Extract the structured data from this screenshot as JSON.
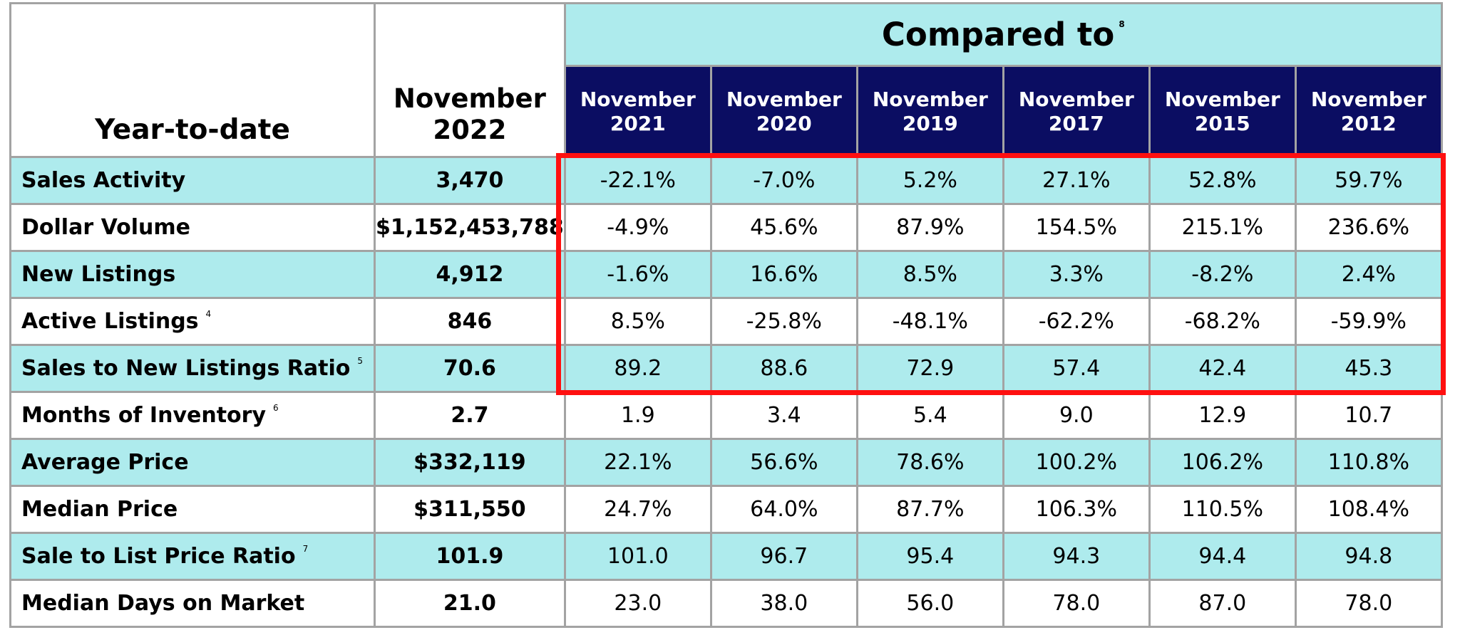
{
  "table": {
    "corner_label": "Year-to-date",
    "current_period": [
      "November",
      "2022"
    ],
    "compared_label": "Compared to",
    "compared_note": "8",
    "comparison_periods": [
      [
        "November",
        "2021"
      ],
      [
        "November",
        "2020"
      ],
      [
        "November",
        "2019"
      ],
      [
        "November",
        "2017"
      ],
      [
        "November",
        "2015"
      ],
      [
        "November",
        "2012"
      ]
    ],
    "rows": [
      {
        "label": "Sales Activity",
        "note": "",
        "current": "3,470",
        "values": [
          "-22.1%",
          "-7.0%",
          "5.2%",
          "27.1%",
          "52.8%",
          "59.7%"
        ]
      },
      {
        "label": "Dollar Volume",
        "note": "",
        "current": "$1,152,453,788",
        "values": [
          "-4.9%",
          "45.6%",
          "87.9%",
          "154.5%",
          "215.1%",
          "236.6%"
        ]
      },
      {
        "label": "New Listings",
        "note": "",
        "current": "4,912",
        "values": [
          "-1.6%",
          "16.6%",
          "8.5%",
          "3.3%",
          "-8.2%",
          "2.4%"
        ]
      },
      {
        "label": "Active Listings",
        "note": "4",
        "current": "846",
        "values": [
          "8.5%",
          "-25.8%",
          "-48.1%",
          "-62.2%",
          "-68.2%",
          "-59.9%"
        ]
      },
      {
        "label": "Sales to New Listings Ratio",
        "note": "5",
        "current": "70.6",
        "values": [
          "89.2",
          "88.6",
          "72.9",
          "57.4",
          "42.4",
          "45.3"
        ]
      },
      {
        "label": "Months of Inventory",
        "note": "6",
        "current": "2.7",
        "values": [
          "1.9",
          "3.4",
          "5.4",
          "9.0",
          "12.9",
          "10.7"
        ]
      },
      {
        "label": "Average Price",
        "note": "",
        "current": "$332,119",
        "values": [
          "22.1%",
          "56.6%",
          "78.6%",
          "100.2%",
          "106.2%",
          "110.8%"
        ]
      },
      {
        "label": "Median Price",
        "note": "",
        "current": "$311,550",
        "values": [
          "24.7%",
          "64.0%",
          "87.7%",
          "106.3%",
          "110.5%",
          "108.4%"
        ]
      },
      {
        "label": "Sale to List Price Ratio",
        "note": "7",
        "current": "101.9",
        "values": [
          "101.0",
          "96.7",
          "95.4",
          "94.3",
          "94.4",
          "94.8"
        ]
      },
      {
        "label": "Median Days on Market",
        "note": "",
        "current": "21.0",
        "values": [
          "23.0",
          "38.0",
          "56.0",
          "78.0",
          "87.0",
          "78.0"
        ]
      }
    ]
  },
  "colors": {
    "row_shade": "#aeebed",
    "header_dark": "#0b0d62",
    "highlight_border": "#ff1010",
    "grid": "#a3a3a3"
  }
}
